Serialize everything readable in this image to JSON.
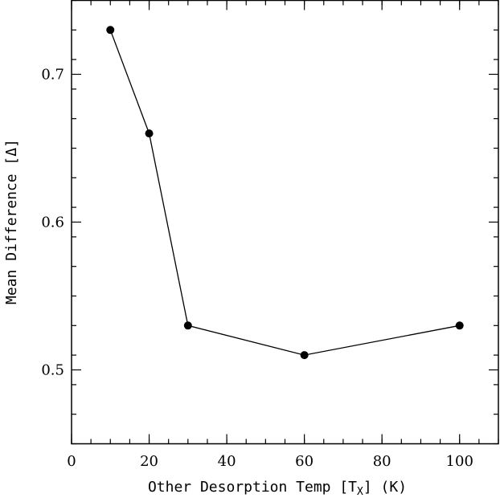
{
  "chart_data": {
    "type": "line",
    "x": [
      10,
      20,
      30,
      60,
      100
    ],
    "series": [
      {
        "values": [
          0.73,
          0.66,
          0.53,
          0.51,
          0.53
        ]
      }
    ],
    "xlabel": {
      "main": "Other Desorption Temp [T",
      "sub": "X",
      "tail": "] (K)"
    },
    "ylabel": "Mean Difference [Δ]",
    "xlim": [
      0,
      110
    ],
    "ylim": [
      0.45,
      0.75
    ],
    "xticks": [
      0,
      20,
      40,
      60,
      80,
      100
    ],
    "xtick_labels": [
      "0",
      "20",
      "40",
      "60",
      "80",
      "100"
    ],
    "yticks": [
      0.5,
      0.6,
      0.7
    ],
    "ytick_labels": [
      "0.5",
      "0.6",
      "0.7"
    ],
    "x_minor_step": 5,
    "y_minor_step": 0.02,
    "grid": false,
    "marker": "filled-circle",
    "line_color": "#000000",
    "marker_color": "#000000"
  }
}
